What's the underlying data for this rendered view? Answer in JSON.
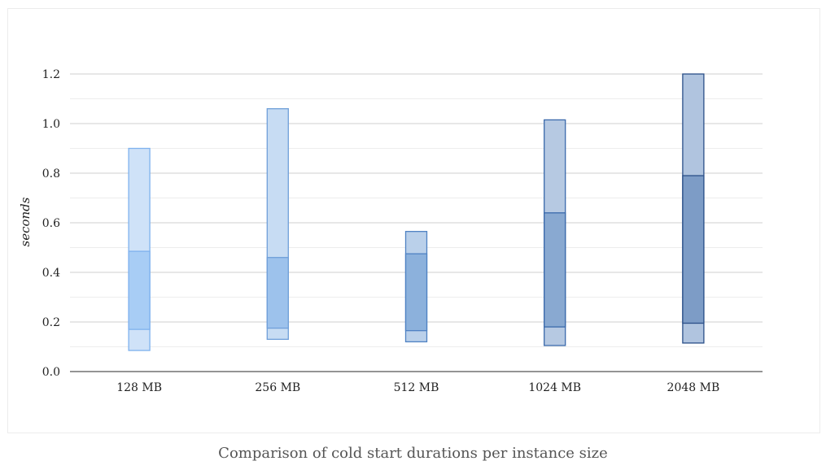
{
  "caption": "Comparison of cold start durations per instance size",
  "colors": {
    "major_grid": "#cfcfcf",
    "minor_grid": "#ededed",
    "axis": "#555555",
    "series": [
      {
        "outer_fill": "#cfe2f8",
        "inner_fill": "#a8cdf5",
        "stroke": "#7fb2ee"
      },
      {
        "outer_fill": "#c7dcf3",
        "inner_fill": "#9dc2ec",
        "stroke": "#6f9fd9"
      },
      {
        "outer_fill": "#bad0ea",
        "inner_fill": "#8cb1dc",
        "stroke": "#4f82c3"
      },
      {
        "outer_fill": "#b6c9e2",
        "inner_fill": "#89a9d1",
        "stroke": "#3a69ab"
      },
      {
        "outer_fill": "#b0c4df",
        "inner_fill": "#7d9cc6",
        "stroke": "#2a4f88"
      }
    ]
  },
  "chart_data": {
    "type": "bar",
    "subtype": "floating-range (min / lower / upper / max)",
    "title": "",
    "xlabel": "",
    "ylabel": "seconds",
    "ylim": [
      0,
      1.2
    ],
    "yticks": [
      "0.0",
      "0.2",
      "0.4",
      "0.6",
      "0.8",
      "1.0",
      "1.2"
    ],
    "grid": true,
    "categories": [
      "128 MB",
      "256 MB",
      "512 MB",
      "1024 MB",
      "2048 MB"
    ],
    "ranges": [
      {
        "min": 0.085,
        "lower": 0.17,
        "upper": 0.485,
        "max": 0.9
      },
      {
        "min": 0.13,
        "lower": 0.175,
        "upper": 0.46,
        "max": 1.06
      },
      {
        "min": 0.12,
        "lower": 0.165,
        "upper": 0.475,
        "max": 0.565
      },
      {
        "min": 0.105,
        "lower": 0.18,
        "upper": 0.64,
        "max": 1.015
      },
      {
        "min": 0.115,
        "lower": 0.195,
        "upper": 0.79,
        "max": 1.2
      }
    ]
  }
}
